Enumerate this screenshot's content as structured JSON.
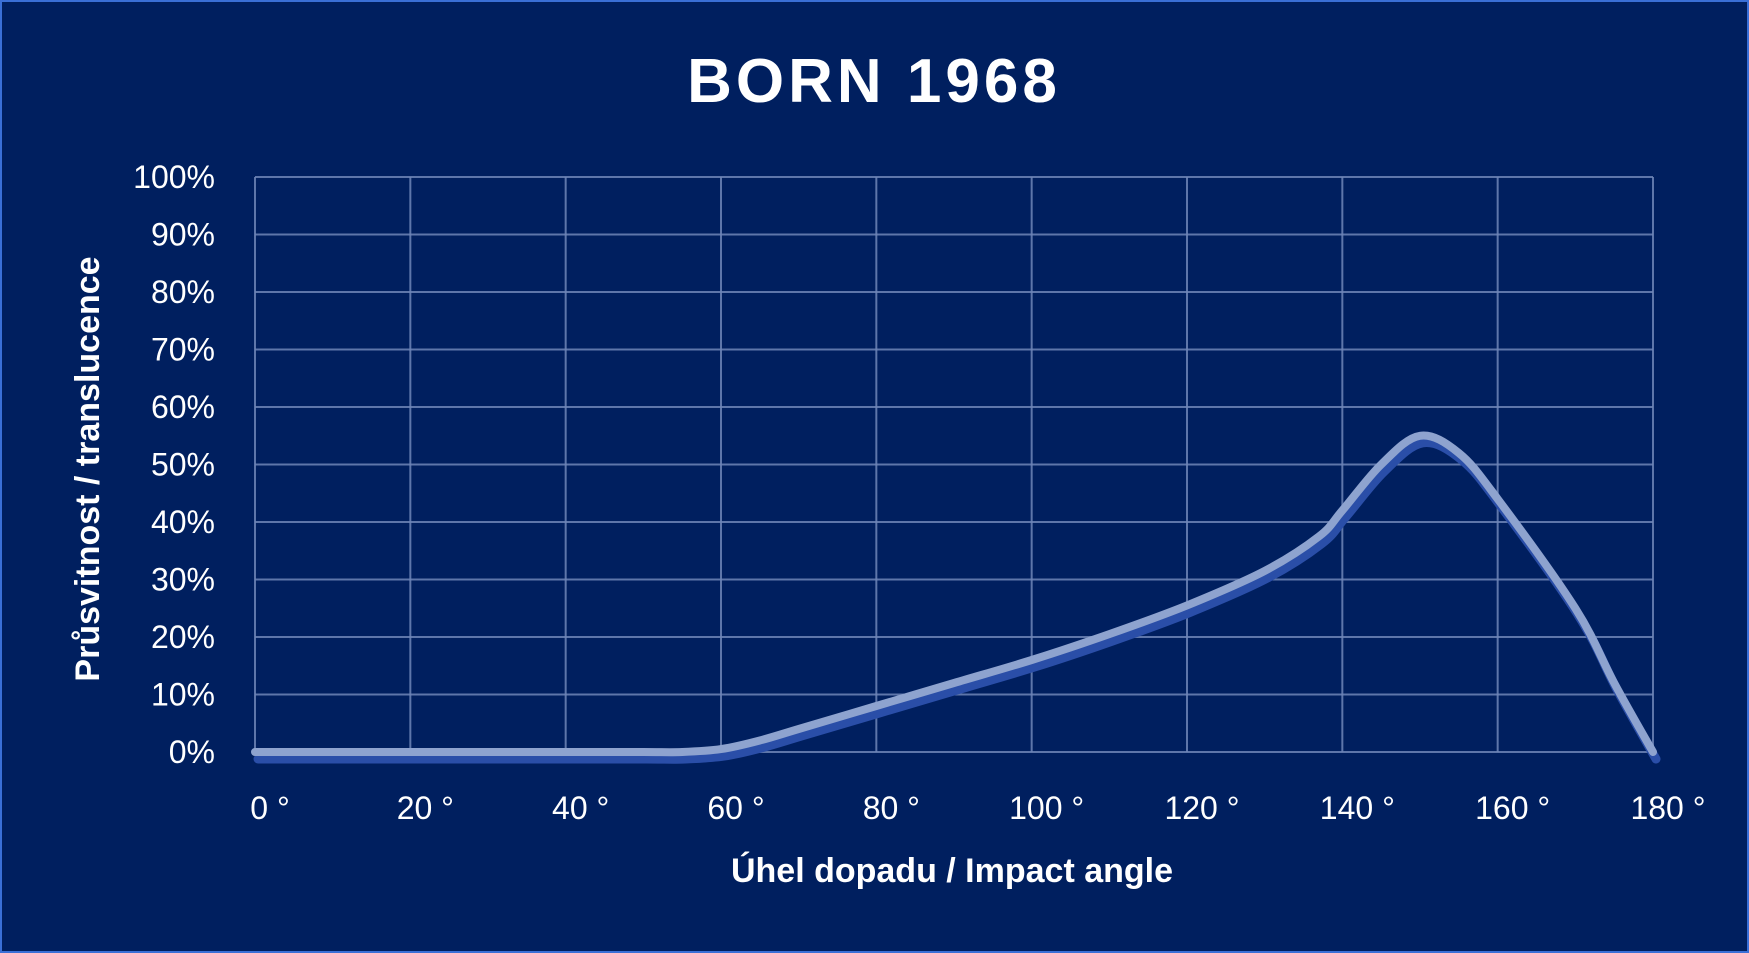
{
  "chart_data": {
    "type": "line",
    "title": "BORN 1968",
    "xlabel": "Úhel dopadu / Impact angle",
    "ylabel": "Průsvitnost  / translucence",
    "x_ticks": [
      "0 °",
      "20 °",
      "40 °",
      "60 °",
      "80 °",
      "100 °",
      "120 °",
      "140 °",
      "160 °",
      "180 °"
    ],
    "y_ticks": [
      "0%",
      "10%",
      "20%",
      "30%",
      "40%",
      "50%",
      "60%",
      "70%",
      "80%",
      "90%",
      "100%"
    ],
    "xlim": [
      0,
      180
    ],
    "ylim": [
      0,
      100
    ],
    "grid": true,
    "series": [
      {
        "x": [
          0,
          10,
          20,
          30,
          40,
          50,
          55,
          60,
          65,
          70,
          80,
          90,
          100,
          110,
          120,
          130,
          137,
          140,
          145,
          150,
          155,
          160,
          170,
          175,
          180
        ],
        "y": [
          0,
          0,
          0,
          0,
          0,
          0,
          0,
          0.5,
          2,
          4,
          8,
          12,
          16,
          20.5,
          25.5,
          31.5,
          37.5,
          42,
          50,
          55,
          52,
          44,
          25,
          12,
          0
        ],
        "color": "#8ea3cf"
      }
    ]
  },
  "colors": {
    "background": "#001f5f",
    "border": "#3a6fd6",
    "line": "#8ea3cf",
    "line_shadow": "#2a4ea8",
    "text": "#ffffff"
  }
}
